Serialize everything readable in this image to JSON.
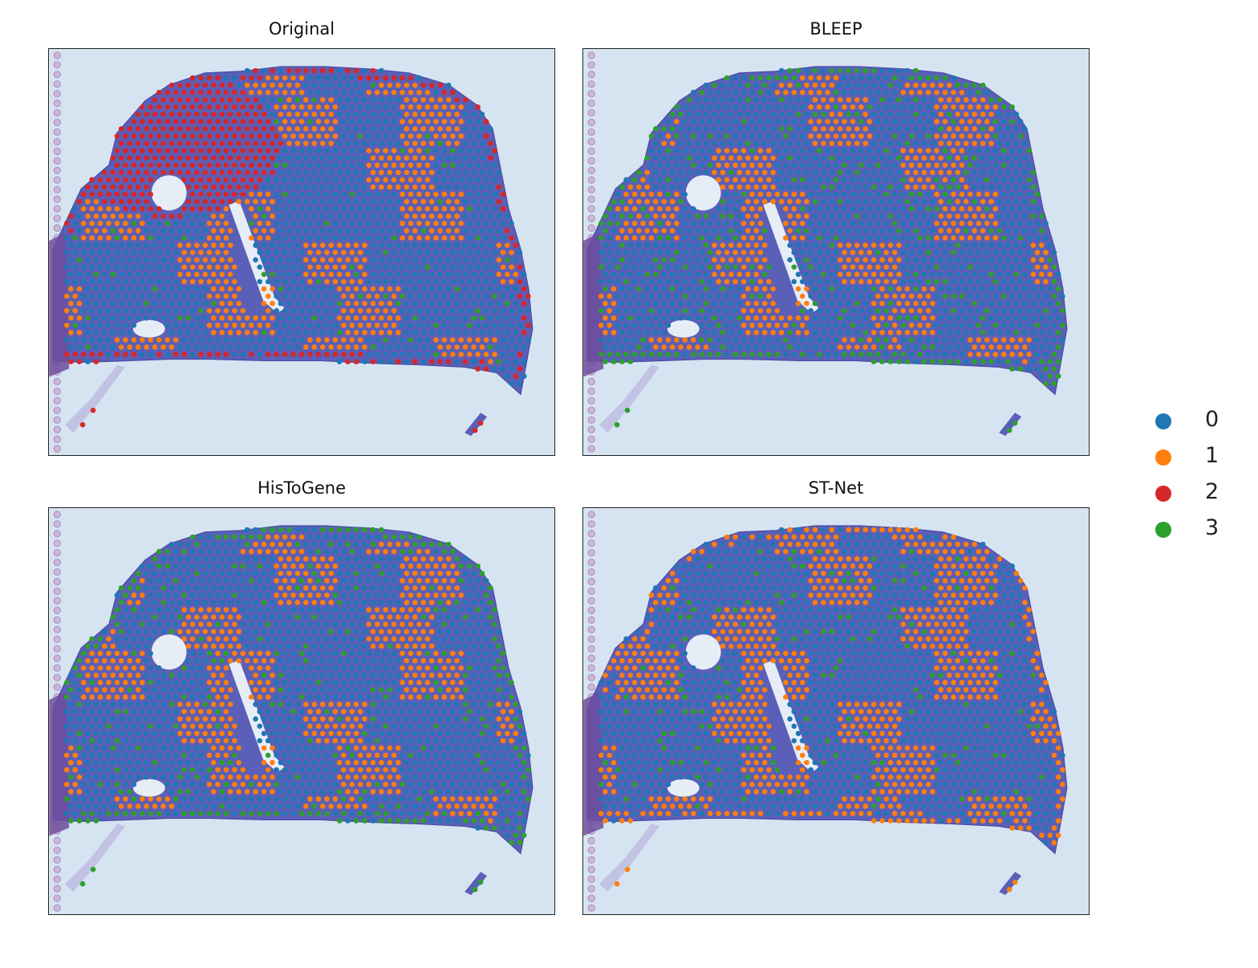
{
  "legend": {
    "entries": [
      {
        "label": "0",
        "color": "#1f77b4"
      },
      {
        "label": "1",
        "color": "#ff7f0e"
      },
      {
        "label": "2",
        "color": "#d62728"
      },
      {
        "label": "3",
        "color": "#2ca02c"
      }
    ]
  },
  "chart_data": [
    {
      "type": "scatter",
      "title": "Original",
      "background": "tissue histology image (H&E) overlaid with spot clusters",
      "cluster_composition": {
        "0": 0.45,
        "1": 0.38,
        "2": 0.12,
        "3": 0.05
      },
      "notable": "cluster 2 (red) concentrated in upper-left region and along tissue border"
    },
    {
      "type": "scatter",
      "title": "BLEEP",
      "cluster_composition": {
        "0": 0.48,
        "1": 0.35,
        "2": 0.0,
        "3": 0.17
      },
      "notable": "cluster 3 (green) along tissue border"
    },
    {
      "type": "scatter",
      "title": "HisToGene",
      "cluster_composition": {
        "0": 0.44,
        "1": 0.42,
        "2": 0.0,
        "3": 0.14
      },
      "notable": "cluster 3 (green) along tissue border"
    },
    {
      "type": "scatter",
      "title": "ST-Net",
      "cluster_composition": {
        "0": 0.45,
        "1": 0.44,
        "2": 0.0,
        "3": 0.11
      },
      "notable": "cluster 1 (orange) along tissue border"
    }
  ]
}
